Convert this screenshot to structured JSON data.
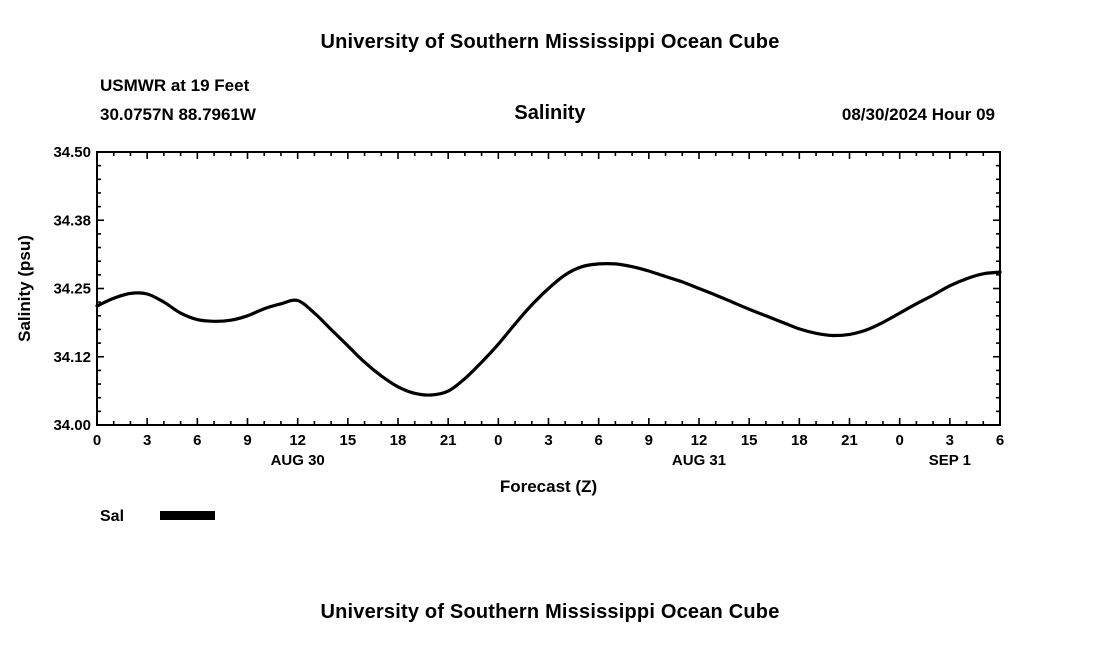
{
  "page": {
    "title_top": "University of Southern Mississippi Ocean Cube",
    "title_bottom": "University of Southern Mississippi Ocean Cube"
  },
  "header": {
    "station": "USMWR at 19 Feet",
    "coordinates": "30.0757N  88.7961W",
    "plot_title": "Salinity",
    "run_time": "08/30/2024 Hour 09"
  },
  "chart_data": {
    "type": "line",
    "title": "Salinity",
    "xlabel": "Forecast (Z)",
    "ylabel": "Salinity (psu)",
    "ylim": [
      34.0,
      34.5
    ],
    "ytick_values": [
      34.0,
      34.125,
      34.25,
      34.375,
      34.5
    ],
    "ytick_labels": [
      "34.00",
      "34.12",
      "34.25",
      "34.38",
      "34.50"
    ],
    "x_hours_span": 54,
    "xtick_step": 3,
    "xtick_labels": [
      "0",
      "3",
      "6",
      "9",
      "12",
      "15",
      "18",
      "21",
      "0",
      "3",
      "6",
      "9",
      "12",
      "15",
      "18",
      "21",
      "0",
      "3",
      "6"
    ],
    "day_labels": [
      {
        "label": "AUG 30",
        "hour": 12
      },
      {
        "label": "AUG 31",
        "hour": 36
      },
      {
        "label": "SEP 1",
        "hour": 51
      }
    ],
    "legend": [
      {
        "name": "Sal",
        "color": "#000000"
      }
    ],
    "grid": "ticks-only",
    "line_color": "#000000",
    "series": [
      {
        "name": "Sal",
        "x_start_hour": 0,
        "x_step_hours": 1,
        "values": [
          34.218,
          34.232,
          34.241,
          34.24,
          34.225,
          34.205,
          34.193,
          34.19,
          34.192,
          34.2,
          34.213,
          34.222,
          34.228,
          34.205,
          34.175,
          34.145,
          34.115,
          34.09,
          34.07,
          34.058,
          34.055,
          34.062,
          34.085,
          34.115,
          34.148,
          34.185,
          34.22,
          34.25,
          34.275,
          34.29,
          34.295,
          34.295,
          34.29,
          34.282,
          34.272,
          34.262,
          34.25,
          34.238,
          34.225,
          34.212,
          34.2,
          34.188,
          34.176,
          34.168,
          34.164,
          34.166,
          34.174,
          34.188,
          34.205,
          34.222,
          34.238,
          34.255,
          34.268,
          34.277,
          34.28
        ]
      }
    ]
  }
}
